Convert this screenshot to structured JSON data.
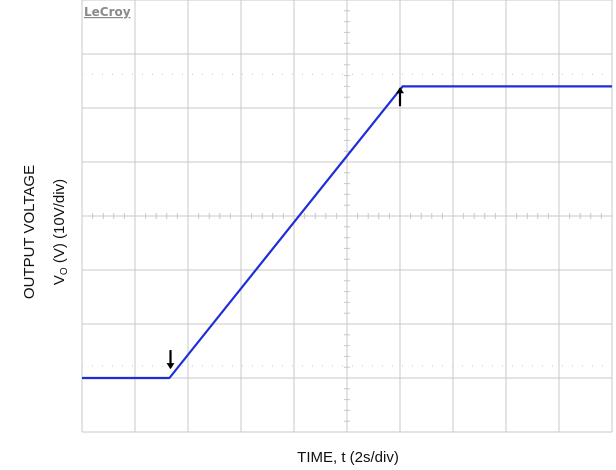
{
  "brand": {
    "logo_text": "LeCroy"
  },
  "chart_data": {
    "type": "line",
    "xlabel": "TIME, t (2s/div)",
    "ylabel_line1": "OUTPUT VOLTAGE",
    "ylabel_line2_prefix": "V",
    "ylabel_line2_sub": "O",
    "ylabel_line2_suffix": " (V) (10V/div)",
    "x_divisions": 10,
    "y_divisions": 8,
    "grid": true,
    "series": [
      {
        "color": "#1f2dd6",
        "x_div": [
          0.0,
          1.65,
          6.05,
          10.0
        ],
        "y_div": [
          1.0,
          1.0,
          6.4,
          6.4
        ]
      }
    ],
    "markers": [
      {
        "glyph": "down-arrow",
        "x_div": 1.67,
        "y_div": 1.35
      },
      {
        "glyph": "up-arrow",
        "x_div": 6.0,
        "y_div": 6.2
      }
    ]
  }
}
